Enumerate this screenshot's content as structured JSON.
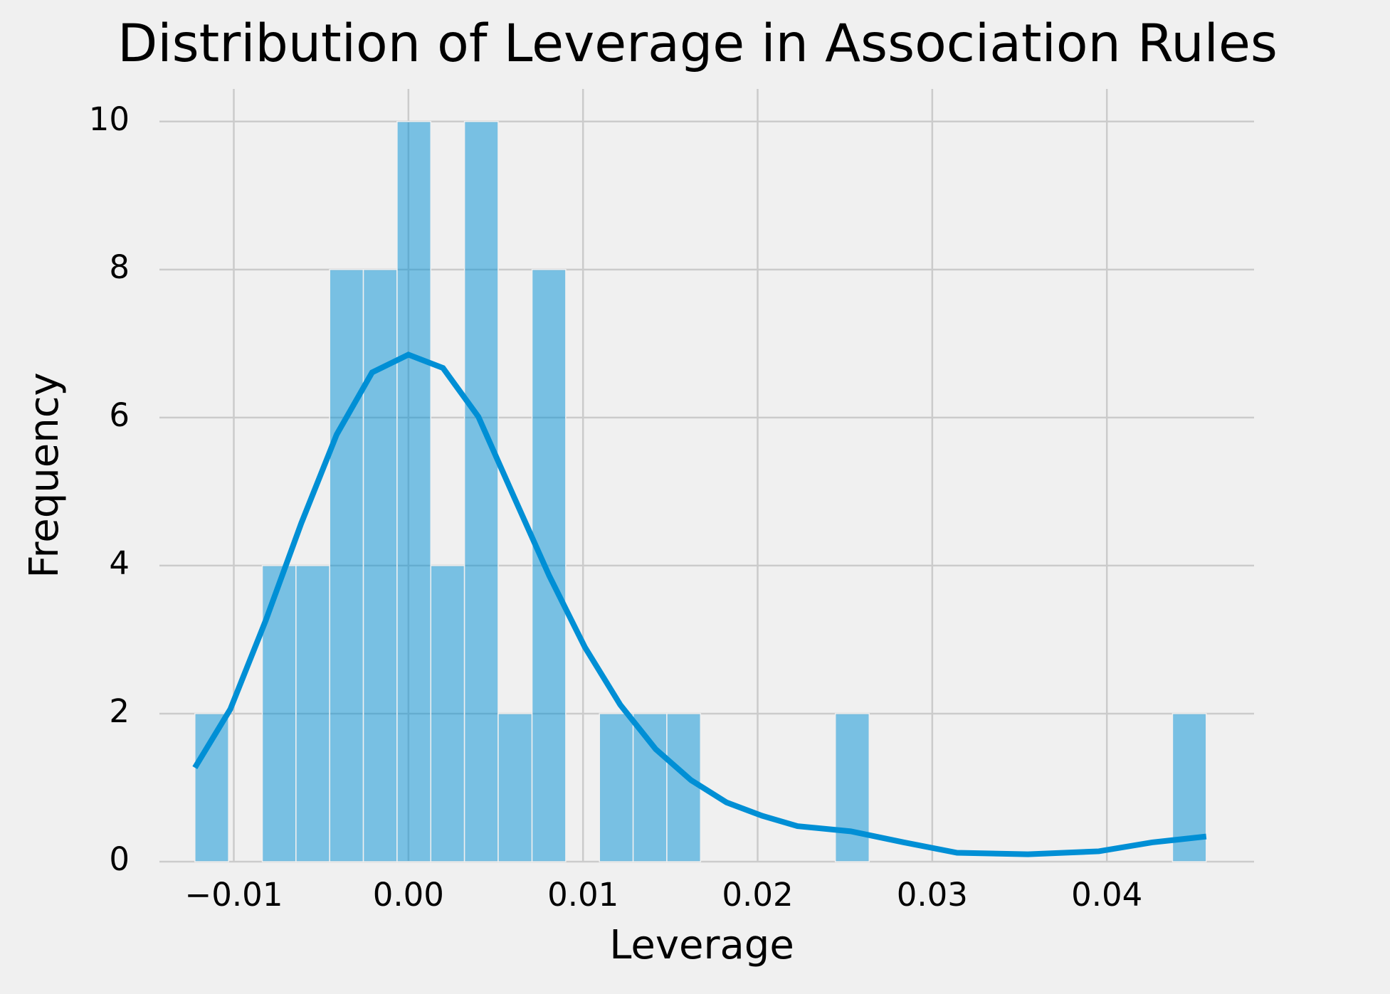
{
  "chart_data": {
    "type": "histogram",
    "title": "Distribution of Leverage in Association Rules",
    "xlabel": "Leverage",
    "ylabel": "Frequency",
    "bins": [
      -0.01223,
      -0.0103,
      -0.00837,
      -0.00644,
      -0.00451,
      -0.00258,
      -0.00065,
      0.00128,
      0.00321,
      0.00514,
      0.00708,
      0.00901,
      0.01094,
      0.01287,
      0.0148,
      0.01673,
      0.01866,
      0.02059,
      0.02252,
      0.02445,
      0.02639,
      0.02832,
      0.03025,
      0.03218,
      0.03411,
      0.03604,
      0.03797,
      0.0399,
      0.04183,
      0.04376,
      0.04569
    ],
    "counts": [
      2,
      0,
      4,
      4,
      8,
      8,
      10,
      4,
      10,
      2,
      8,
      0,
      2,
      2,
      2,
      0,
      0,
      0,
      0,
      2,
      0,
      0,
      0,
      0,
      0,
      0,
      0,
      0,
      0,
      2
    ],
    "color": "#008fd5",
    "kde": {
      "color": "#008fd5",
      "x": [
        -0.01223,
        -0.0102,
        -0.00817,
        -0.00614,
        -0.00411,
        -0.00208,
        0.0,
        0.00198,
        0.00401,
        0.00604,
        0.00807,
        0.0101,
        0.01213,
        0.01416,
        0.01619,
        0.01822,
        0.02025,
        0.02228,
        0.02533,
        0.02838,
        0.03142,
        0.03548,
        0.03954,
        0.04259,
        0.04569
      ],
      "values": [
        1.27,
        2.06,
        3.26,
        4.57,
        5.77,
        6.61,
        6.85,
        6.67,
        6.01,
        4.93,
        3.86,
        2.9,
        2.12,
        1.52,
        1.1,
        0.8,
        0.62,
        0.48,
        0.41,
        0.26,
        0.12,
        0.1,
        0.14,
        0.26,
        0.34
      ]
    },
    "xlim": [
      -0.01426,
      0.04843
    ],
    "ylim": [
      0,
      10.44
    ],
    "xticks": [
      {
        "value": -0.01,
        "label": "−0.01"
      },
      {
        "value": 0,
        "label": "0.00"
      },
      {
        "value": 0.01,
        "label": "0.01"
      },
      {
        "value": 0.02,
        "label": "0.02"
      },
      {
        "value": 0.03,
        "label": "0.03"
      },
      {
        "value": 0.04,
        "label": "0.04"
      }
    ],
    "yticks": [
      0,
      2,
      4,
      6,
      8,
      10
    ],
    "grid": true
  }
}
